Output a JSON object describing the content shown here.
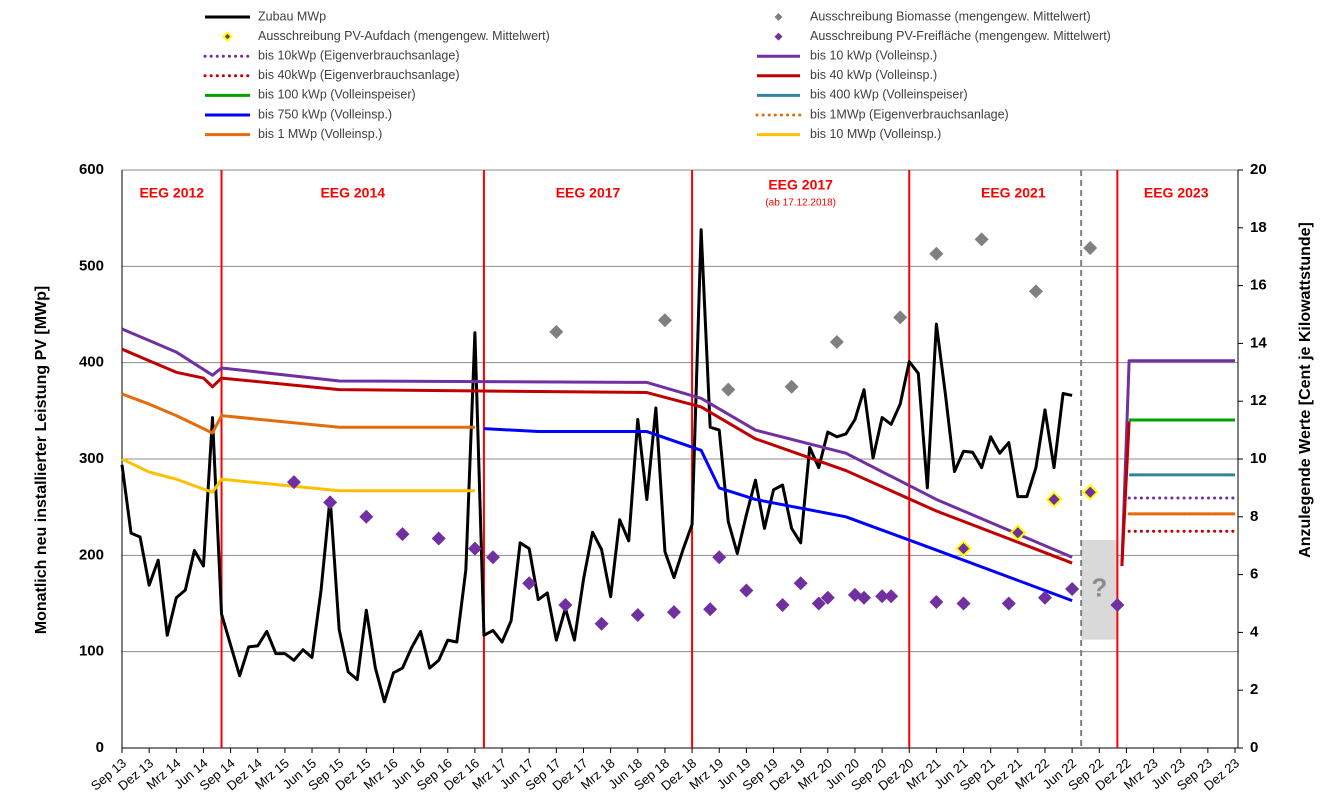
{
  "chart_data": {
    "type": "line",
    "ylabel": "Monatlich neu installierter Leistung PV [MWp]",
    "y2label": "Anzulegende Werte [Cent je Kilowattstunde]",
    "xlim": [
      0,
      123
    ],
    "ylim": [
      0,
      600
    ],
    "y2lim": [
      0,
      20
    ],
    "yticks": [
      0,
      100,
      200,
      300,
      400,
      500,
      600
    ],
    "y2ticks": [
      0,
      2,
      4,
      6,
      8,
      10,
      12,
      14,
      16,
      18,
      20
    ],
    "grid": true,
    "xticks": [
      {
        "value": 0,
        "label": "Sep 13"
      },
      {
        "value": 3,
        "label": "Dez 13"
      },
      {
        "value": 6,
        "label": "Mrz 14"
      },
      {
        "value": 9,
        "label": "Jun 14"
      },
      {
        "value": 12,
        "label": "Sep 14"
      },
      {
        "value": 15,
        "label": "Dez 14"
      },
      {
        "value": 18,
        "label": "Mrz 15"
      },
      {
        "value": 21,
        "label": "Jun 15"
      },
      {
        "value": 24,
        "label": "Sep 15"
      },
      {
        "value": 27,
        "label": "Dez 15"
      },
      {
        "value": 30,
        "label": "Mrz 16"
      },
      {
        "value": 33,
        "label": "Jun 16"
      },
      {
        "value": 36,
        "label": "Sep 16"
      },
      {
        "value": 39,
        "label": "Dez 16"
      },
      {
        "value": 42,
        "label": "Mrz 17"
      },
      {
        "value": 45,
        "label": "Jun 17"
      },
      {
        "value": 48,
        "label": "Sep 17"
      },
      {
        "value": 51,
        "label": "Dez 17"
      },
      {
        "value": 54,
        "label": "Mrz 18"
      },
      {
        "value": 57,
        "label": "Jun 18"
      },
      {
        "value": 60,
        "label": "Sep 18"
      },
      {
        "value": 63,
        "label": "Dez 18"
      },
      {
        "value": 66,
        "label": "Mrz 19"
      },
      {
        "value": 69,
        "label": "Jun 19"
      },
      {
        "value": 72,
        "label": "Sep 19"
      },
      {
        "value": 75,
        "label": "Dez 19"
      },
      {
        "value": 78,
        "label": "Mrz 20"
      },
      {
        "value": 81,
        "label": "Jun 20"
      },
      {
        "value": 84,
        "label": "Sep 20"
      },
      {
        "value": 87,
        "label": "Dez 20"
      },
      {
        "value": 90,
        "label": "Mrz 21"
      },
      {
        "value": 93,
        "label": "Jun 21"
      },
      {
        "value": 96,
        "label": "Sep 21"
      },
      {
        "value": 99,
        "label": "Dez 21"
      },
      {
        "value": 102,
        "label": "Mrz 22"
      },
      {
        "value": 105,
        "label": "Jun 22"
      },
      {
        "value": 108,
        "label": "Sep 22"
      },
      {
        "value": 111,
        "label": "Dez 22"
      },
      {
        "value": 114,
        "label": "Mrz 23"
      },
      {
        "value": 117,
        "label": "Jun 23"
      },
      {
        "value": 120,
        "label": "Sep 23"
      },
      {
        "value": 123,
        "label": "Dez 23"
      }
    ],
    "periods": [
      {
        "label": "EEG 2012",
        "start": 0,
        "end": 11
      },
      {
        "label": "EEG 2014",
        "start": 11,
        "end": 40
      },
      {
        "label": "EEG 2017",
        "start": 40,
        "end": 63
      },
      {
        "label": "EEG 2017",
        "note": "(ab 17.12.2018)",
        "start": 63,
        "end": 87
      },
      {
        "label": "EEG 2021",
        "start": 87,
        "end": 110
      },
      {
        "label": "EEG 2023",
        "start": 110,
        "end": 123
      }
    ],
    "cutoff": 106,
    "unknown": {
      "label": "?",
      "x": [
        106,
        110
      ],
      "y2": [
        3.75,
        7.2
      ]
    },
    "series": [
      {
        "name": "Zubau MWp",
        "color": "#000000",
        "axis": "y",
        "mark": "line",
        "dotted": false,
        "x": [
          0,
          1,
          2,
          3,
          4,
          5,
          6,
          7,
          8,
          9,
          10,
          11,
          12,
          13,
          14,
          15,
          16,
          17,
          18,
          19,
          20,
          21,
          22,
          23,
          24,
          25,
          26,
          27,
          28,
          29,
          30,
          31,
          32,
          33,
          34,
          35,
          36,
          37,
          38,
          39,
          40,
          41,
          42,
          43,
          44,
          45,
          46,
          47,
          48,
          49,
          50,
          51,
          52,
          53,
          54,
          55,
          56,
          57,
          58,
          59,
          60,
          61,
          62,
          63,
          64,
          65,
          66,
          67,
          68,
          69,
          70,
          71,
          72,
          73,
          74,
          75,
          76,
          77,
          78,
          79,
          80,
          81,
          82,
          83,
          84,
          85,
          86,
          87,
          88,
          89,
          90,
          91,
          92,
          93,
          94,
          95,
          96,
          97,
          98,
          99,
          100,
          101,
          102,
          103,
          104,
          105
        ],
        "values": [
          294,
          223,
          219,
          169,
          195,
          117,
          156,
          164,
          205,
          189,
          343,
          139,
          107,
          75,
          105,
          106,
          121,
          98,
          98,
          91,
          102,
          94,
          164,
          260,
          123,
          79,
          71,
          143,
          83,
          48,
          78,
          83,
          104,
          121,
          83,
          91,
          112,
          110,
          185,
          431,
          117,
          122,
          110,
          132,
          213,
          207,
          154,
          161,
          112,
          145,
          112,
          175,
          224,
          206,
          157,
          237,
          215,
          341,
          258,
          353,
          204,
          177,
          206,
          232,
          538,
          333,
          330,
          235,
          202,
          242,
          278,
          228,
          268,
          273,
          228,
          213,
          312,
          291,
          328,
          323,
          326,
          341,
          372,
          301,
          343,
          336,
          357,
          401,
          389,
          270,
          440,
          367,
          287,
          308,
          307,
          291,
          323,
          306,
          317,
          261,
          261,
          291,
          351,
          291,
          368,
          366
        ]
      },
      {
        "name": "Ausschreibung Biomasse (mengengew. Mittelwert)",
        "color": "#808080",
        "axis": "y2",
        "mark": "diamond",
        "x": [
          48,
          60,
          67,
          74,
          79,
          86,
          90,
          95,
          101,
          107
        ],
        "values": [
          14.4,
          14.8,
          12.4,
          12.5,
          14.05,
          14.9,
          17.1,
          17.6,
          15.8,
          17.3
        ]
      },
      {
        "name": "Ausschreibung PV-Aufdach (mengengew. Mittelwert)",
        "color": "#ffff00",
        "fill": "#7030a0",
        "axis": "y2",
        "mark": "diamond",
        "x": [
          93,
          99,
          103,
          107
        ],
        "values": [
          6.9,
          7.45,
          8.6,
          8.85
        ]
      },
      {
        "name": "Ausschreibung PV-Freifläche (mengengew. Mittelwert)",
        "color": "#7030a0",
        "axis": "y2",
        "mark": "diamond",
        "x": [
          19,
          23,
          27,
          31,
          35,
          39,
          41,
          45,
          49,
          53,
          57,
          61,
          65,
          66,
          69,
          73,
          75,
          77,
          78,
          81,
          82,
          84,
          85,
          90,
          93,
          98,
          102,
          105,
          110
        ],
        "values": [
          9.2,
          8.5,
          8.0,
          7.4,
          7.25,
          6.9,
          6.6,
          5.7,
          4.95,
          4.3,
          4.6,
          4.7,
          4.8,
          6.6,
          5.45,
          4.95,
          5.7,
          5.0,
          5.2,
          5.3,
          5.2,
          5.25,
          5.25,
          5.05,
          5.0,
          5.0,
          5.2,
          5.5,
          4.95
        ]
      },
      {
        "name": "bis 10kWp (Eigenverbrauchsanlage)",
        "color": "#7030a0",
        "axis": "y2",
        "mark": "line",
        "dotted": true,
        "x": [
          111.3,
          123
        ],
        "values": [
          8.65,
          8.65
        ]
      },
      {
        "name": "bis 10 kWp (Volleinsp.)",
        "color": "#7030a0",
        "axis": "y2",
        "mark": "line",
        "dotted": false,
        "x": [
          0,
          3,
          6,
          10,
          11,
          24,
          58,
          64,
          70,
          80,
          90,
          105,
          108,
          110.5,
          111.3,
          123
        ],
        "values": [
          14.5,
          14.1,
          13.7,
          12.9,
          13.15,
          12.7,
          12.65,
          12.1,
          11.0,
          10.2,
          8.6,
          6.6,
          null,
          6.3,
          13.4,
          13.4
        ]
      },
      {
        "name": "bis 40kWp (Eigenverbrauchsanlage)",
        "color": "#c00000",
        "axis": "y2",
        "mark": "line",
        "dotted": true,
        "x": [
          111.3,
          123
        ],
        "values": [
          7.5,
          7.5
        ]
      },
      {
        "name": "bis 40 kWp (Volleinsp.)",
        "color": "#c00000",
        "axis": "y2",
        "mark": "line",
        "dotted": false,
        "x": [
          0,
          3,
          6,
          9,
          10,
          11,
          24,
          58,
          64,
          70,
          80,
          90,
          105,
          108,
          110.5,
          111.3
        ],
        "values": [
          13.8,
          13.4,
          13.0,
          12.8,
          12.5,
          12.8,
          12.4,
          12.3,
          11.8,
          10.7,
          9.6,
          8.2,
          6.4,
          null,
          6.3,
          11.3
        ]
      },
      {
        "name": "bis 100 kWp (Volleinspeiser)",
        "color": "#00a000",
        "axis": "y2",
        "mark": "line",
        "dotted": false,
        "x": [
          111.3,
          123
        ],
        "values": [
          11.35,
          11.35
        ]
      },
      {
        "name": "bis 400 kWp (Volleinspeiser)",
        "color": "#31849b",
        "axis": "y2",
        "mark": "line",
        "dotted": false,
        "x": [
          111.3,
          123
        ],
        "values": [
          9.45,
          9.45
        ]
      },
      {
        "name": "bis 750 kWp (Volleinsp.)",
        "color": "#0000ff",
        "axis": "y2",
        "mark": "line",
        "dotted": false,
        "x": [
          40,
          46,
          58,
          64,
          66,
          70,
          80,
          90,
          105
        ],
        "values": [
          11.05,
          10.95,
          10.95,
          10.3,
          9.0,
          8.6,
          8.0,
          6.85,
          5.1
        ]
      },
      {
        "name": "bis 1MWp (Eigenverbrauchsanlage)",
        "color": "#e46c0a",
        "axis": "y2",
        "mark": "line",
        "dotted": true,
        "x": [
          111.3,
          123
        ],
        "values": [
          8.1,
          8.1
        ]
      },
      {
        "name": "bis 1 MWp (Volleinsp.)",
        "color": "#e46c0a",
        "axis": "y2",
        "mark": "line",
        "dotted": false,
        "x": [
          0,
          3,
          6,
          10,
          11,
          24,
          39,
          45,
          111.3,
          123
        ],
        "values": [
          12.25,
          11.9,
          11.5,
          10.9,
          11.5,
          11.1,
          11.1,
          null,
          8.1,
          8.1
        ]
      },
      {
        "name": "bis 10 MWp (Volleinsp.)",
        "color": "#ffc000",
        "axis": "y2",
        "mark": "line",
        "dotted": false,
        "x": [
          0,
          3,
          6,
          10,
          11,
          24,
          39
        ],
        "values": [
          10.0,
          9.55,
          9.3,
          8.85,
          9.3,
          8.9,
          8.9
        ]
      }
    ]
  }
}
